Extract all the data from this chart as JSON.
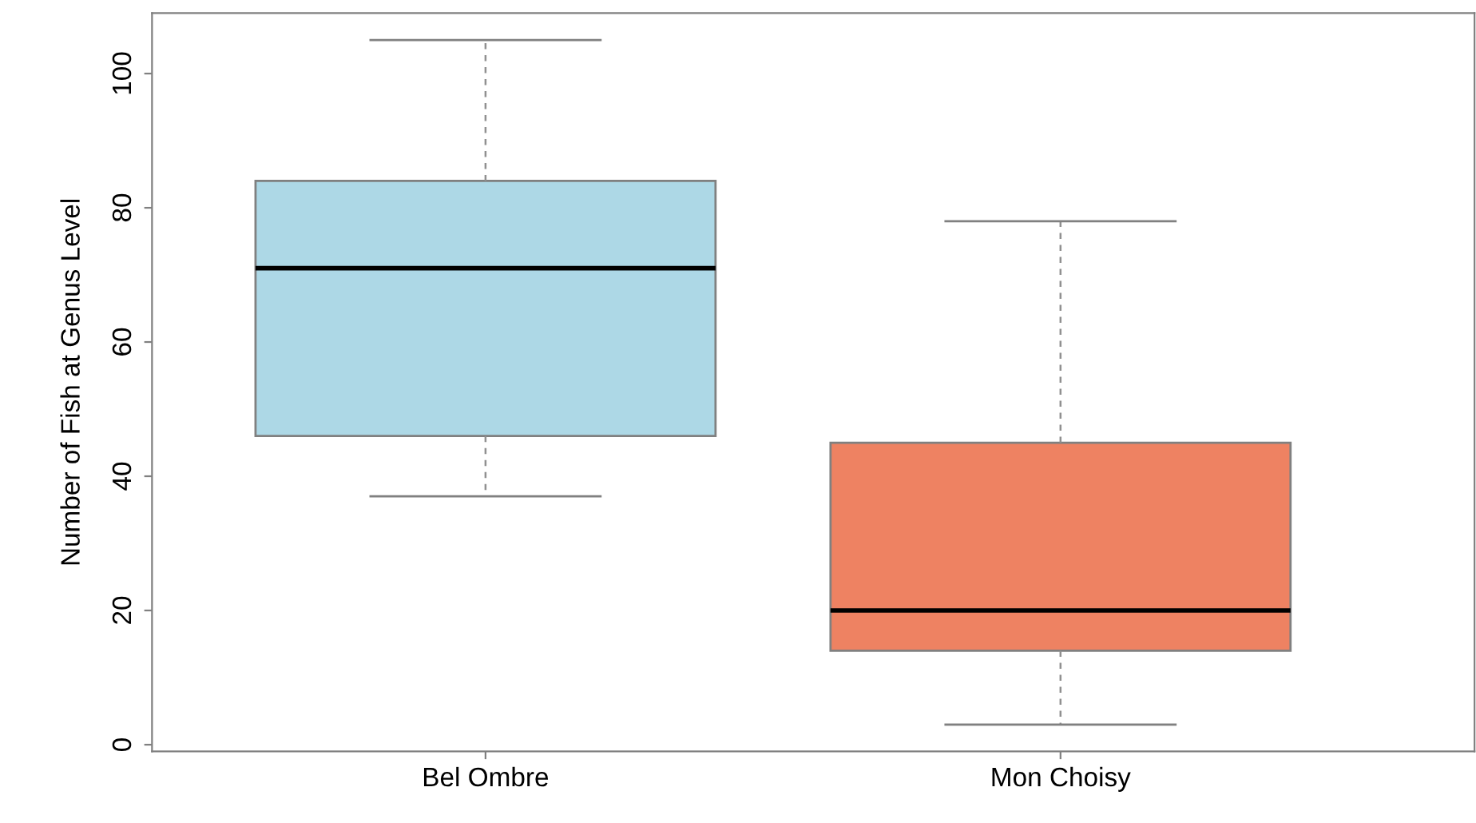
{
  "chart_data": {
    "type": "box",
    "ylabel": "Number of Fish at Genus Level",
    "categories": [
      "Bel Ombre",
      "Mon Choisy"
    ],
    "boxes": [
      {
        "low": 37,
        "q1": 46,
        "median": 71,
        "q3": 84,
        "high": 105
      },
      {
        "low": 3,
        "q1": 14,
        "median": 20,
        "q3": 45,
        "high": 78
      }
    ],
    "colors": [
      "#add8e6",
      "#ee8262"
    ],
    "ylim": [
      -1,
      109
    ],
    "yticks": [
      0,
      20,
      40,
      60,
      80,
      100
    ],
    "grid": false
  }
}
